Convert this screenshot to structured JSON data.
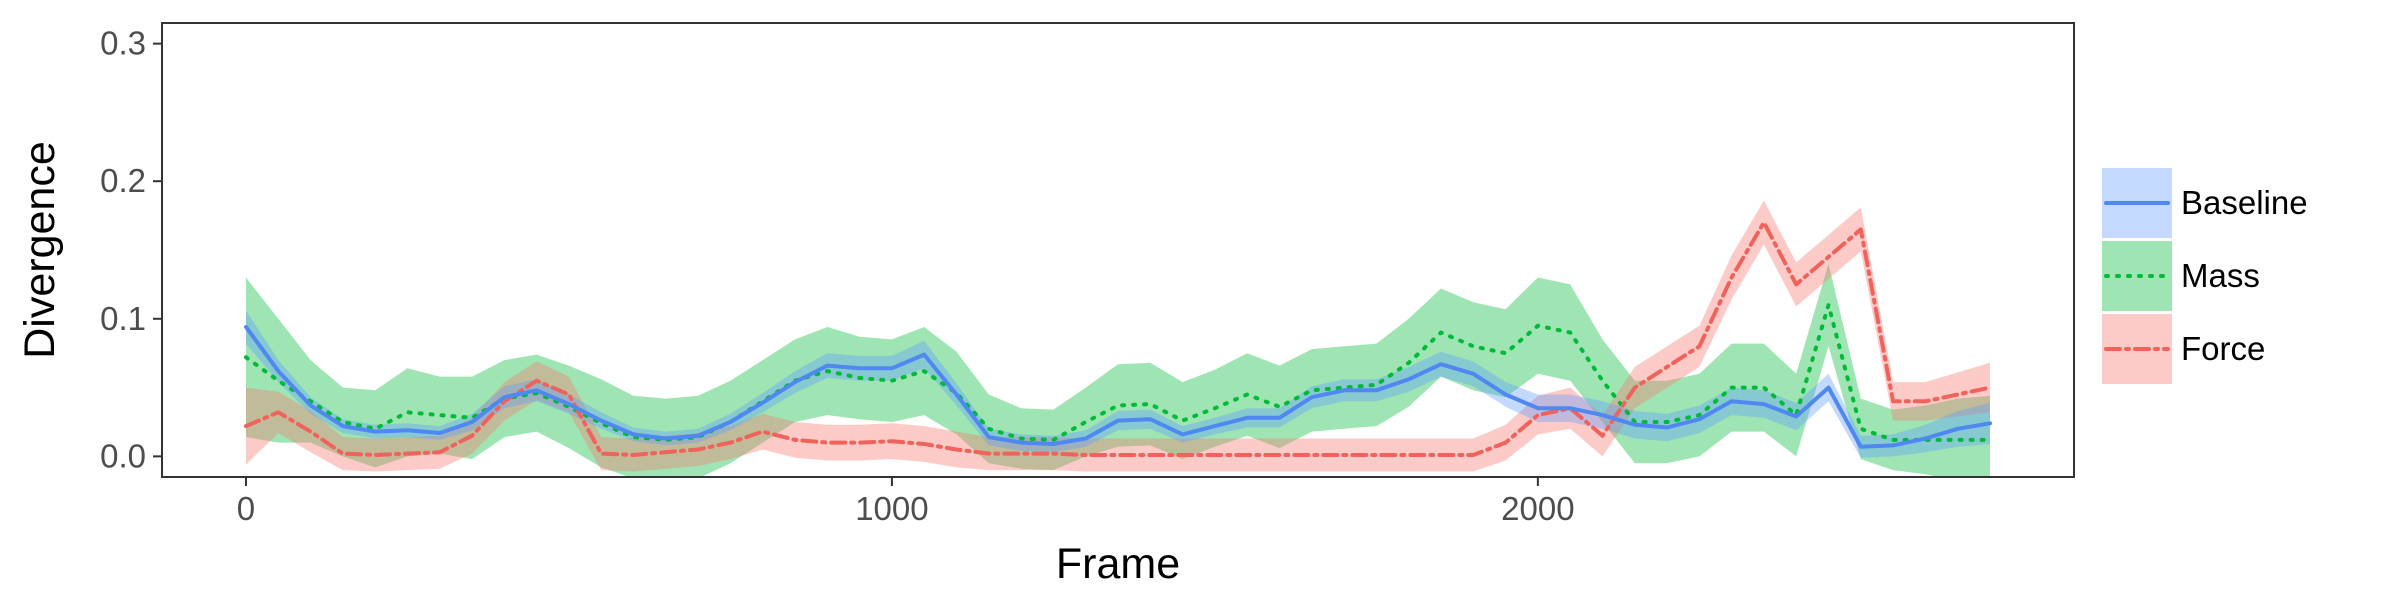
{
  "chart_data": {
    "type": "line",
    "xlabel": "Frame",
    "ylabel": "Divergence",
    "xlim": [
      -130,
      2830
    ],
    "ylim": [
      -0.015,
      0.315
    ],
    "x_ticks": [
      0,
      1000,
      2000
    ],
    "x_tick_labels": [
      "0",
      "1000",
      "2000"
    ],
    "y_ticks": [
      0.0,
      0.1,
      0.2,
      0.3
    ],
    "y_tick_labels": [
      "0.0",
      "0.1",
      "0.2",
      "0.3"
    ],
    "grid": false,
    "legend_position": "right",
    "series": [
      {
        "name": "Baseline",
        "color": "#619CFF",
        "line_color": "#4E88F0",
        "line_style": "solid",
        "x": [
          0,
          50,
          100,
          150,
          200,
          250,
          300,
          350,
          400,
          450,
          500,
          550,
          600,
          650,
          700,
          750,
          800,
          850,
          900,
          950,
          1000,
          1050,
          1100,
          1150,
          1200,
          1250,
          1300,
          1350,
          1400,
          1450,
          1500,
          1550,
          1600,
          1650,
          1700,
          1750,
          1800,
          1850,
          1900,
          1950,
          2000,
          2050,
          2100,
          2150,
          2200,
          2250,
          2300,
          2350,
          2400,
          2450,
          2500,
          2550,
          2600,
          2650,
          2700
        ],
        "y": [
          0.094,
          0.062,
          0.037,
          0.022,
          0.018,
          0.019,
          0.017,
          0.025,
          0.043,
          0.048,
          0.038,
          0.026,
          0.016,
          0.013,
          0.015,
          0.025,
          0.039,
          0.054,
          0.066,
          0.064,
          0.064,
          0.074,
          0.045,
          0.014,
          0.01,
          0.009,
          0.013,
          0.026,
          0.027,
          0.016,
          0.022,
          0.028,
          0.028,
          0.043,
          0.048,
          0.048,
          0.056,
          0.067,
          0.06,
          0.045,
          0.035,
          0.035,
          0.03,
          0.023,
          0.021,
          0.027,
          0.04,
          0.038,
          0.029,
          0.05,
          0.007,
          0.008,
          0.013,
          0.02,
          0.024
        ],
        "ci": [
          0.012,
          0.008,
          0.006,
          0.005,
          0.005,
          0.005,
          0.005,
          0.006,
          0.008,
          0.008,
          0.007,
          0.006,
          0.005,
          0.005,
          0.005,
          0.006,
          0.007,
          0.008,
          0.009,
          0.009,
          0.009,
          0.01,
          0.008,
          0.006,
          0.006,
          0.006,
          0.006,
          0.007,
          0.007,
          0.006,
          0.006,
          0.007,
          0.007,
          0.008,
          0.008,
          0.008,
          0.009,
          0.009,
          0.009,
          0.009,
          0.01,
          0.01,
          0.01,
          0.01,
          0.01,
          0.01,
          0.01,
          0.01,
          0.01,
          0.01,
          0.008,
          0.008,
          0.01,
          0.013,
          0.015
        ]
      },
      {
        "name": "Mass",
        "color": "#00BA38",
        "line_color": "#00BA38",
        "line_style": "dotted",
        "x": [
          0,
          50,
          100,
          150,
          200,
          250,
          300,
          350,
          400,
          450,
          500,
          550,
          600,
          650,
          700,
          750,
          800,
          850,
          900,
          950,
          1000,
          1050,
          1100,
          1150,
          1200,
          1250,
          1300,
          1350,
          1400,
          1450,
          1500,
          1550,
          1600,
          1650,
          1700,
          1750,
          1800,
          1850,
          1900,
          1950,
          2000,
          2050,
          2100,
          2150,
          2200,
          2250,
          2300,
          2350,
          2400,
          2450,
          2500,
          2550,
          2600,
          2650,
          2700
        ],
        "y": [
          0.072,
          0.055,
          0.04,
          0.025,
          0.02,
          0.032,
          0.03,
          0.028,
          0.042,
          0.046,
          0.036,
          0.024,
          0.014,
          0.012,
          0.014,
          0.025,
          0.04,
          0.055,
          0.062,
          0.057,
          0.055,
          0.062,
          0.046,
          0.02,
          0.013,
          0.012,
          0.025,
          0.037,
          0.038,
          0.026,
          0.035,
          0.045,
          0.036,
          0.048,
          0.05,
          0.052,
          0.068,
          0.09,
          0.08,
          0.075,
          0.095,
          0.09,
          0.055,
          0.025,
          0.025,
          0.03,
          0.05,
          0.05,
          0.03,
          0.11,
          0.02,
          0.012,
          0.012,
          0.012,
          0.012
        ],
        "ci": [
          0.058,
          0.045,
          0.03,
          0.025,
          0.028,
          0.032,
          0.028,
          0.03,
          0.028,
          0.028,
          0.03,
          0.032,
          0.03,
          0.03,
          0.03,
          0.03,
          0.03,
          0.03,
          0.032,
          0.03,
          0.03,
          0.032,
          0.03,
          0.025,
          0.022,
          0.022,
          0.025,
          0.03,
          0.03,
          0.028,
          0.028,
          0.03,
          0.03,
          0.03,
          0.03,
          0.03,
          0.032,
          0.032,
          0.032,
          0.032,
          0.035,
          0.035,
          0.03,
          0.03,
          0.03,
          0.03,
          0.032,
          0.032,
          0.03,
          0.03,
          0.022,
          0.022,
          0.025,
          0.03,
          0.032
        ]
      },
      {
        "name": "Force",
        "color": "#F8766D",
        "line_color": "#F0625C",
        "line_style": "dashdot",
        "x": [
          0,
          50,
          100,
          150,
          200,
          250,
          300,
          350,
          400,
          450,
          500,
          550,
          600,
          650,
          700,
          750,
          800,
          850,
          900,
          950,
          1000,
          1050,
          1100,
          1150,
          1200,
          1250,
          1300,
          1350,
          1400,
          1450,
          1500,
          1550,
          1600,
          1650,
          1700,
          1750,
          1800,
          1850,
          1900,
          1950,
          2000,
          2050,
          2100,
          2150,
          2200,
          2250,
          2300,
          2350,
          2400,
          2450,
          2500,
          2550,
          2600,
          2650,
          2700
        ],
        "y": [
          0.022,
          0.032,
          0.018,
          0.002,
          0.001,
          0.002,
          0.003,
          0.015,
          0.04,
          0.055,
          0.045,
          0.002,
          0.001,
          0.003,
          0.005,
          0.01,
          0.018,
          0.012,
          0.01,
          0.01,
          0.011,
          0.009,
          0.005,
          0.002,
          0.002,
          0.002,
          0.001,
          0.001,
          0.001,
          0.001,
          0.001,
          0.001,
          0.001,
          0.001,
          0.001,
          0.001,
          0.001,
          0.001,
          0.001,
          0.01,
          0.03,
          0.035,
          0.015,
          0.05,
          0.065,
          0.08,
          0.13,
          0.17,
          0.125,
          0.145,
          0.165,
          0.04,
          0.04,
          0.045,
          0.05
        ],
        "ci": [
          0.028,
          0.015,
          0.015,
          0.012,
          0.012,
          0.012,
          0.012,
          0.013,
          0.014,
          0.014,
          0.013,
          0.012,
          0.012,
          0.012,
          0.012,
          0.012,
          0.013,
          0.013,
          0.013,
          0.013,
          0.013,
          0.013,
          0.013,
          0.012,
          0.012,
          0.012,
          0.012,
          0.012,
          0.012,
          0.012,
          0.012,
          0.012,
          0.012,
          0.012,
          0.012,
          0.012,
          0.012,
          0.012,
          0.012,
          0.013,
          0.014,
          0.015,
          0.015,
          0.015,
          0.015,
          0.015,
          0.016,
          0.016,
          0.016,
          0.016,
          0.016,
          0.014,
          0.014,
          0.016,
          0.018
        ]
      }
    ]
  }
}
